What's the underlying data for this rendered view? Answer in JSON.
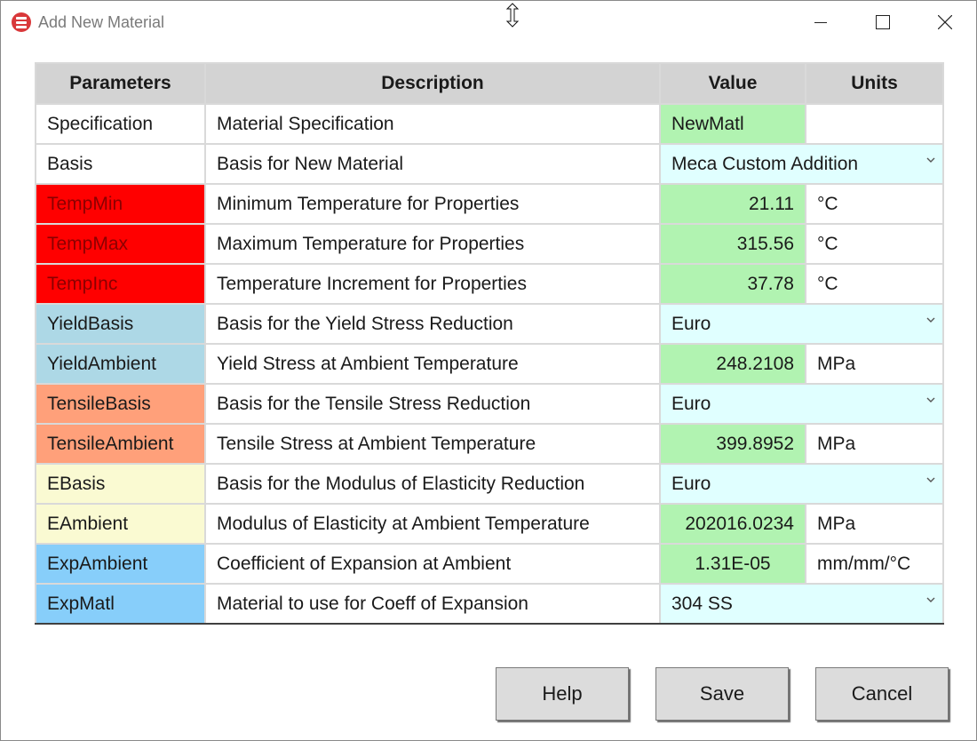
{
  "window": {
    "title": "Add New Material"
  },
  "table": {
    "headers": [
      "Parameters",
      "Description",
      "Value",
      "Units"
    ],
    "rows": [
      {
        "param": "Specification",
        "desc": "Material Specification",
        "value": "NewMatl",
        "units": "",
        "kind": "text",
        "param_bg": "#ffffff",
        "param_color": "#1a1a1a"
      },
      {
        "param": "Basis",
        "desc": "Basis for New Material",
        "value": "Meca Custom Addition",
        "units": "",
        "kind": "select",
        "param_bg": "#ffffff",
        "param_color": "#1a1a1a"
      },
      {
        "param": "TempMin",
        "desc": "Minimum Temperature for Properties",
        "value": "21.11",
        "units": "°C",
        "kind": "number",
        "param_bg": "#ff0000",
        "param_color": "#8b0000"
      },
      {
        "param": "TempMax",
        "desc": "Maximum Temperature for Properties",
        "value": "315.56",
        "units": "°C",
        "kind": "number",
        "param_bg": "#ff0000",
        "param_color": "#8b0000"
      },
      {
        "param": "TempInc",
        "desc": "Temperature Increment for Properties",
        "value": "37.78",
        "units": "°C",
        "kind": "number",
        "param_bg": "#ff0000",
        "param_color": "#8b0000"
      },
      {
        "param": "YieldBasis",
        "desc": "Basis for the Yield Stress Reduction",
        "value": "Euro",
        "units": "",
        "kind": "select",
        "param_bg": "#add8e6",
        "param_color": "#1a1a1a"
      },
      {
        "param": "YieldAmbient",
        "desc": "Yield Stress at Ambient Temperature",
        "value": "248.2108",
        "units": "MPa",
        "kind": "number",
        "param_bg": "#add8e6",
        "param_color": "#1a1a1a"
      },
      {
        "param": "TensileBasis",
        "desc": "Basis for the Tensile Stress Reduction",
        "value": "Euro",
        "units": "",
        "kind": "select",
        "param_bg": "#ffa07a",
        "param_color": "#1a1a1a"
      },
      {
        "param": "TensileAmbient",
        "desc": "Tensile Stress at Ambient Temperature",
        "value": "399.8952",
        "units": "MPa",
        "kind": "number",
        "param_bg": "#ffa07a",
        "param_color": "#1a1a1a"
      },
      {
        "param": "EBasis",
        "desc": "Basis for the Modulus of Elasticity Reduction",
        "value": "Euro",
        "units": "",
        "kind": "select",
        "param_bg": "#fafad2",
        "param_color": "#1a1a1a"
      },
      {
        "param": "EAmbient",
        "desc": "Modulus of Elasticity at Ambient Temperature",
        "value": "202016.0234",
        "units": "MPa",
        "kind": "number",
        "param_bg": "#fafad2",
        "param_color": "#1a1a1a"
      },
      {
        "param": "ExpAmbient",
        "desc": "Coefficient of Expansion at Ambient",
        "value": "1.31E-05",
        "units": "mm/mm/°C",
        "kind": "center",
        "param_bg": "#87cefa",
        "param_color": "#1a1a1a"
      },
      {
        "param": "ExpMatl",
        "desc": "Material to use for Coeff of Expansion",
        "value": "304 SS",
        "units": "",
        "kind": "select",
        "param_bg": "#87cefa",
        "param_color": "#1a1a1a"
      }
    ]
  },
  "buttons": {
    "help": "Help",
    "save": "Save",
    "cancel": "Cancel"
  }
}
